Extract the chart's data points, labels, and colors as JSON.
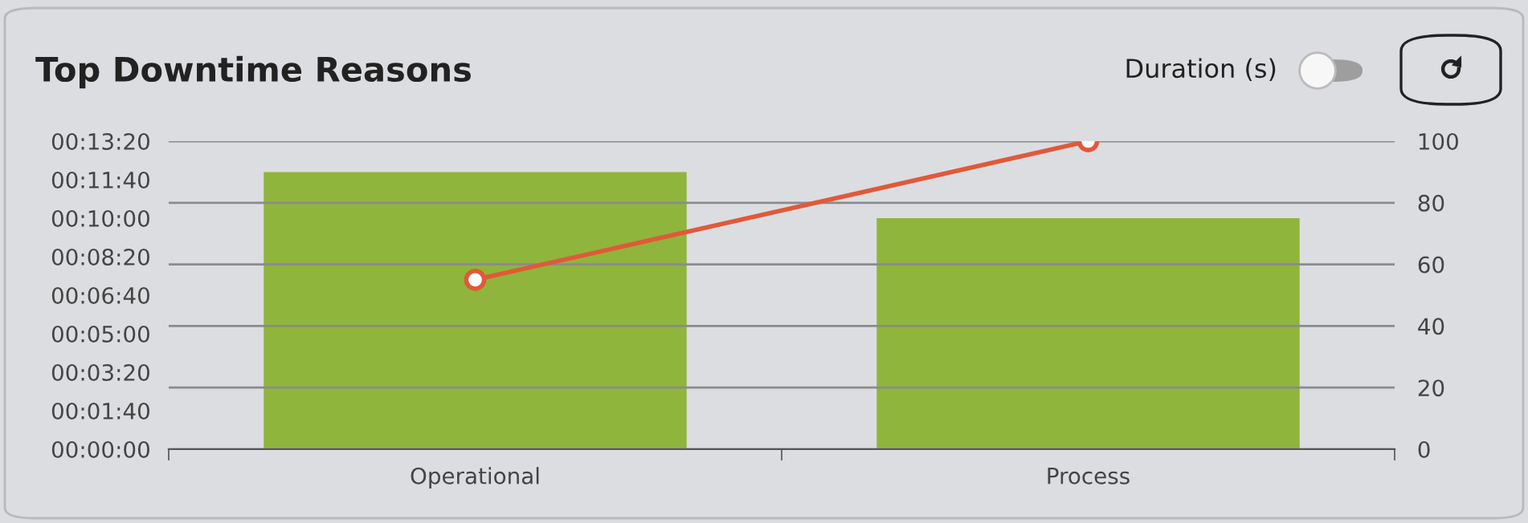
{
  "chart_data": {
    "type": "bar",
    "title": "Top Downtime Reasons",
    "annotations": [
      "Duration (s)"
    ],
    "categories": [
      "Operational",
      "Process"
    ],
    "series": [
      {
        "color": "#8fb53c",
        "values": [
          720,
          600
        ]
      },
      {
        "type": "line",
        "axis": "y2",
        "color": "#e0593a",
        "values": [
          55,
          100
        ],
        "marker": "circle"
      }
    ],
    "ylim": [
      0,
      800
    ],
    "yticks": [
      {
        "value": 0,
        "label": "00:00:00"
      },
      {
        "value": 100,
        "label": "00:01:40"
      },
      {
        "value": 200,
        "label": "00:03:20"
      },
      {
        "value": 300,
        "label": "00:05:00"
      },
      {
        "value": 400,
        "label": "00:06:40"
      },
      {
        "value": 500,
        "label": "00:08:20"
      },
      {
        "value": 600,
        "label": "00:10:00"
      },
      {
        "value": 700,
        "label": "00:11:40"
      },
      {
        "value": 800,
        "label": "00:13:20"
      }
    ],
    "y2lim": [
      0,
      100
    ],
    "y2ticks": [
      0,
      20,
      40,
      60,
      80,
      100
    ],
    "grid": "y"
  }
}
